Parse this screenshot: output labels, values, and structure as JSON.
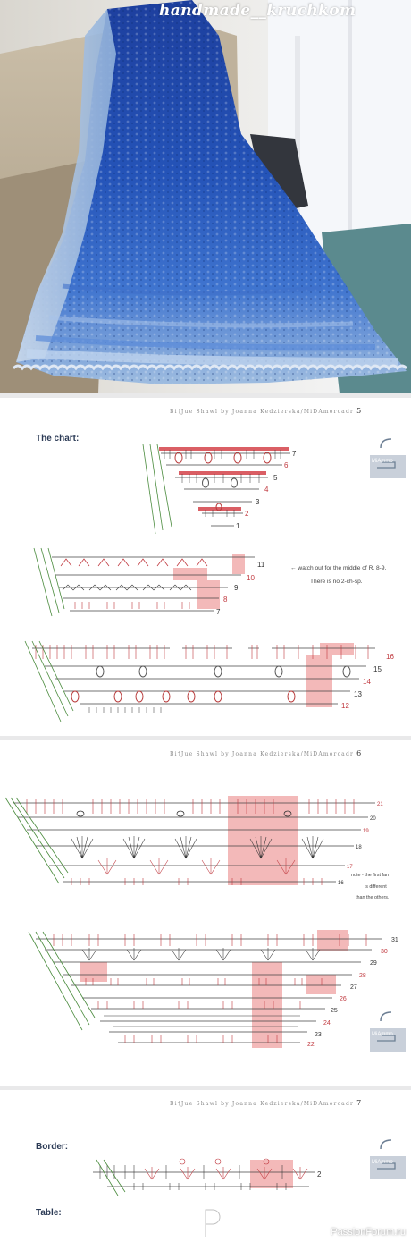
{
  "photo": {
    "watermark": "handmade__kruchkom",
    "colors": {
      "dark_blue": "#1e46a6",
      "mid_blue": "#3a6fd0",
      "light_blue": "#b8cde6",
      "wall": "#f3f4f6"
    }
  },
  "pages": [
    {
      "header": "Bi†Jue Shawl by Joanna Kedzierska/MiDAmorcadr",
      "page_num": "5",
      "heading": "The chart:",
      "note_lines": [
        "← watch out for the middle of R. 8-9.",
        "There is no 2-ch-sp."
      ],
      "section_a_rows": [
        "7",
        "6",
        "5",
        "4",
        "3",
        "2",
        "1"
      ],
      "section_b_rows": [
        "11",
        "10",
        "9",
        "8",
        "7"
      ],
      "section_c_rows": [
        "16",
        "15",
        "14",
        "13",
        "12"
      ],
      "logo_label": "MiAmmo"
    },
    {
      "header": "Bi†Jue Shawl by Joanna Kedzierska/MiDAmorcadr",
      "page_num": "6",
      "note_lines": [
        "note - the first fan",
        "is different",
        "than the others."
      ],
      "section_a_rows": [
        "21",
        "20",
        "19",
        "18",
        "17",
        "16"
      ],
      "section_b_rows": [
        "31",
        "30",
        "29",
        "28",
        "27",
        "26",
        "25",
        "24",
        "23",
        "22"
      ],
      "logo_label": "MiAmmo"
    },
    {
      "header": "Bi†Jue Shawl by Joanna Kedzierska/MiDAmorcadr",
      "page_num": "7",
      "heading": "Border:",
      "border_rows": [
        "2"
      ],
      "table_heading": "Table:",
      "logo_label": "MiAmmo"
    }
  ],
  "footer": {
    "brand": "PassionForum.ru"
  }
}
